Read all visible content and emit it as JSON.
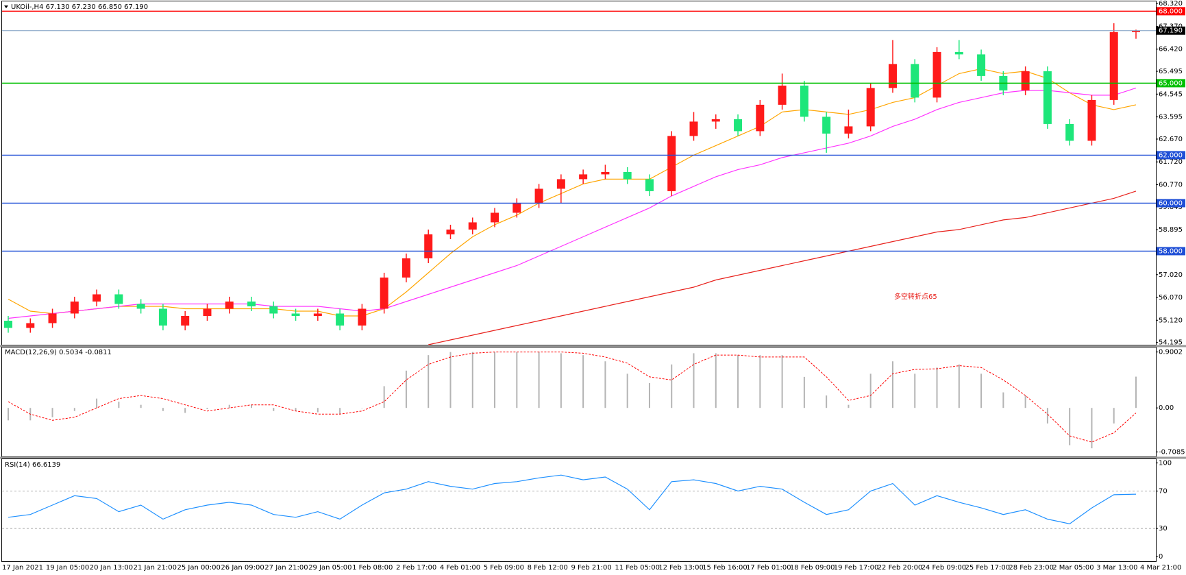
{
  "chart_data": [
    {
      "type": "candlestick",
      "title": "UKOil-,H4  67.130 67.230 66.850 67.190",
      "open": [
        55.1,
        54.8,
        55.0,
        55.4,
        55.9,
        56.2,
        55.8,
        55.6,
        54.9,
        55.3,
        55.6,
        55.9,
        55.7,
        55.4,
        55.3,
        55.4,
        54.9,
        55.6,
        56.9,
        57.7,
        58.7,
        58.9,
        59.2,
        59.6,
        60.0,
        60.6,
        61.0,
        61.2,
        61.3,
        61.0,
        60.5,
        62.8,
        63.4,
        63.5,
        63.0,
        64.1,
        64.9,
        63.6,
        62.9,
        63.2,
        64.8,
        65.8,
        64.4,
        66.3,
        66.2,
        65.3,
        64.7,
        65.5,
        63.3,
        62.6,
        64.3,
        67.13
      ],
      "high": [
        55.3,
        55.2,
        55.6,
        56.1,
        56.4,
        56.4,
        56.0,
        55.8,
        55.5,
        55.8,
        56.1,
        56.1,
        55.9,
        55.6,
        55.6,
        55.6,
        55.8,
        57.1,
        57.9,
        58.9,
        59.1,
        59.4,
        59.8,
        60.2,
        60.8,
        61.2,
        61.4,
        61.6,
        61.5,
        61.2,
        63.0,
        63.8,
        63.7,
        63.7,
        64.3,
        65.4,
        65.1,
        63.8,
        63.9,
        65.0,
        66.8,
        66.0,
        66.5,
        66.8,
        66.4,
        65.5,
        65.7,
        65.7,
        63.5,
        64.5,
        67.5,
        67.23
      ],
      "low": [
        54.6,
        54.6,
        54.8,
        55.2,
        55.7,
        55.6,
        55.4,
        54.7,
        54.7,
        55.1,
        55.4,
        55.5,
        55.2,
        55.1,
        55.1,
        54.7,
        54.7,
        55.4,
        56.7,
        57.5,
        58.5,
        58.7,
        59.0,
        59.4,
        59.8,
        60.0,
        60.8,
        61.0,
        60.8,
        60.3,
        60.3,
        62.6,
        63.1,
        62.8,
        62.8,
        63.9,
        63.4,
        62.1,
        62.7,
        63.0,
        64.6,
        64.2,
        64.2,
        66.0,
        65.1,
        64.5,
        64.5,
        63.1,
        62.4,
        62.4,
        64.1,
        66.85
      ],
      "close": [
        54.8,
        55.0,
        55.4,
        55.9,
        56.2,
        55.8,
        55.6,
        54.9,
        55.3,
        55.6,
        55.9,
        55.7,
        55.4,
        55.3,
        55.4,
        54.9,
        55.6,
        56.9,
        57.7,
        58.7,
        58.9,
        59.2,
        59.6,
        60.0,
        60.6,
        61.0,
        61.2,
        61.3,
        61.0,
        60.5,
        62.8,
        63.4,
        63.5,
        63.0,
        64.1,
        64.9,
        63.6,
        62.9,
        63.2,
        64.8,
        65.8,
        64.4,
        66.3,
        66.2,
        65.3,
        64.7,
        65.5,
        63.3,
        62.6,
        64.3,
        67.13,
        67.19
      ],
      "up_color": "#ff1a1a",
      "down_color": "#1ee67a",
      "lines": [
        {
          "color": "#ffa500",
          "values": [
            56.0,
            55.5,
            55.4,
            55.5,
            55.6,
            55.7,
            55.7,
            55.7,
            55.6,
            55.6,
            55.6,
            55.6,
            55.6,
            55.5,
            55.5,
            55.3,
            55.3,
            55.6,
            56.3,
            57.1,
            57.9,
            58.6,
            59.1,
            59.5,
            60.0,
            60.4,
            60.8,
            61.0,
            61.0,
            61.0,
            61.5,
            62.0,
            62.4,
            62.8,
            63.2,
            63.8,
            63.9,
            63.8,
            63.7,
            63.9,
            64.2,
            64.4,
            64.9,
            65.4,
            65.6,
            65.4,
            65.5,
            65.2,
            64.6,
            64.1,
            63.9,
            64.1
          ]
        },
        {
          "color": "#ff33ff",
          "values": [
            55.2,
            55.3,
            55.4,
            55.5,
            55.6,
            55.7,
            55.8,
            55.8,
            55.8,
            55.8,
            55.8,
            55.8,
            55.7,
            55.7,
            55.7,
            55.6,
            55.5,
            55.6,
            55.9,
            56.2,
            56.5,
            56.8,
            57.1,
            57.4,
            57.8,
            58.2,
            58.6,
            59.0,
            59.4,
            59.8,
            60.3,
            60.7,
            61.1,
            61.4,
            61.6,
            61.9,
            62.1,
            62.3,
            62.5,
            62.8,
            63.2,
            63.5,
            63.9,
            64.2,
            64.4,
            64.6,
            64.7,
            64.7,
            64.6,
            64.5,
            64.5,
            64.8
          ]
        },
        {
          "color": "#e8201b",
          "values": [
            null,
            null,
            null,
            null,
            null,
            null,
            null,
            null,
            null,
            null,
            null,
            null,
            null,
            null,
            null,
            null,
            null,
            null,
            null,
            54.1,
            54.3,
            54.5,
            54.7,
            54.9,
            55.1,
            55.3,
            55.5,
            55.7,
            55.9,
            56.1,
            56.3,
            56.5,
            56.8,
            57.0,
            57.2,
            57.4,
            57.6,
            57.8,
            58.0,
            58.2,
            58.4,
            58.6,
            58.8,
            58.9,
            59.1,
            59.3,
            59.4,
            59.6,
            59.8,
            60.0,
            60.2,
            60.5
          ]
        }
      ],
      "levels": [
        {
          "value": 68,
          "label": "68.000",
          "color": "#ff0000"
        },
        {
          "value": 65,
          "label": "65.000",
          "color": "#00c000"
        },
        {
          "value": 62,
          "label": "62.000",
          "color": "#1f4fd6"
        },
        {
          "value": 60,
          "label": "60.000",
          "color": "#1f4fd6"
        },
        {
          "value": 58,
          "label": "58.000",
          "color": "#1f4fd6"
        },
        {
          "value": 67.19,
          "label": "67.190",
          "color": "#000000"
        }
      ],
      "annotation": "多空转折点65",
      "annotation_color": "#e8201b",
      "ylim": [
        54.1,
        68.41
      ],
      "yticks": [
        {
          "value": 68.32,
          "label": "68.320"
        },
        {
          "value": 67.37,
          "label": "67.370"
        },
        {
          "value": 66.42,
          "label": "66.420"
        },
        65.495,
        64.545,
        63.595,
        {
          "value": 62.67,
          "label": "62.670"
        },
        {
          "value": 61.72,
          "label": "61.720"
        },
        {
          "value": 60.77,
          "label": "60.770"
        },
        59.845,
        58.895,
        {
          "value": 57.02,
          "label": "57.020"
        },
        {
          "value": 56.07,
          "label": "56.070"
        },
        {
          "value": 55.12,
          "label": "55.120"
        },
        54.195
      ],
      "xtick_labels": [
        "17 Jan 2021",
        "19 Jan 05:00",
        "20 Jan 13:00",
        "21 Jan 21:00",
        "25 Jan 00:00",
        "26 Jan 09:00",
        "27 Jan 21:00",
        "29 Jan 05:00",
        "1 Feb 08:00",
        "2 Feb 17:00",
        "4 Feb 01:00",
        "5 Feb 09:00",
        "8 Feb 12:00",
        "9 Feb 21:00",
        "11 Feb 05:00",
        "12 Feb 13:00",
        "15 Feb 16:00",
        "17 Feb 01:00",
        "18 Feb 09:00",
        "19 Feb 17:00",
        "22 Feb 20:00",
        "24 Feb 09:00",
        "25 Feb 17:00",
        "28 Feb 23:00",
        "2 Mar 05:00",
        "3 Mar 13:00",
        "4 Mar 21:00"
      ]
    },
    {
      "type": "macd",
      "title": "MACD(12,26,9) 0.5034 -0.0811",
      "values": [
        -0.2,
        -0.2,
        -0.15,
        -0.05,
        0.15,
        0.1,
        0.05,
        -0.05,
        -0.08,
        -0.02,
        0.05,
        0.05,
        -0.05,
        -0.05,
        -0.07,
        -0.1,
        0.0,
        0.35,
        0.6,
        0.85,
        0.9,
        0.9,
        0.9,
        0.9,
        0.9,
        0.88,
        0.85,
        0.75,
        0.55,
        0.4,
        0.7,
        0.88,
        0.88,
        0.85,
        0.85,
        0.85,
        0.5,
        0.2,
        0.05,
        0.55,
        0.75,
        0.55,
        0.65,
        0.7,
        0.55,
        0.25,
        0.2,
        -0.25,
        -0.6,
        -0.65,
        -0.25,
        0.5034
      ],
      "signal": [
        0.1,
        -0.1,
        -0.2,
        -0.15,
        0.0,
        0.15,
        0.2,
        0.15,
        0.05,
        -0.05,
        0.0,
        0.05,
        0.05,
        -0.05,
        -0.1,
        -0.1,
        -0.05,
        0.1,
        0.45,
        0.7,
        0.82,
        0.88,
        0.9,
        0.9,
        0.9,
        0.9,
        0.88,
        0.82,
        0.72,
        0.5,
        0.45,
        0.7,
        0.85,
        0.85,
        0.82,
        0.82,
        0.82,
        0.5,
        0.12,
        0.2,
        0.55,
        0.62,
        0.63,
        0.68,
        0.65,
        0.45,
        0.2,
        -0.1,
        -0.45,
        -0.55,
        -0.4,
        -0.0811
      ],
      "color": "#b4b4b4",
      "signal_color": "#ff0000",
      "ylim": [
        -0.781,
        0.973
      ],
      "yticks": [
        0.9002,
        {
          "value": 0,
          "label": "0.00"
        },
        -0.7085
      ]
    },
    {
      "type": "line",
      "title": "RSI(14) 66.6139",
      "values": [
        42,
        45,
        55,
        65,
        62,
        48,
        55,
        40,
        50,
        55,
        58,
        55,
        45,
        42,
        48,
        40,
        55,
        68,
        72,
        80,
        75,
        72,
        78,
        80,
        84,
        87,
        82,
        85,
        72,
        50,
        80,
        82,
        78,
        70,
        75,
        72,
        58,
        45,
        50,
        70,
        78,
        55,
        65,
        58,
        52,
        45,
        50,
        40,
        35,
        52,
        66,
        66.6139
      ],
      "color": "#1e90ff",
      "levels": [
        30,
        70
      ],
      "ylim": [
        -5,
        104
      ],
      "yticks": [
        0,
        30,
        70,
        100
      ]
    }
  ]
}
